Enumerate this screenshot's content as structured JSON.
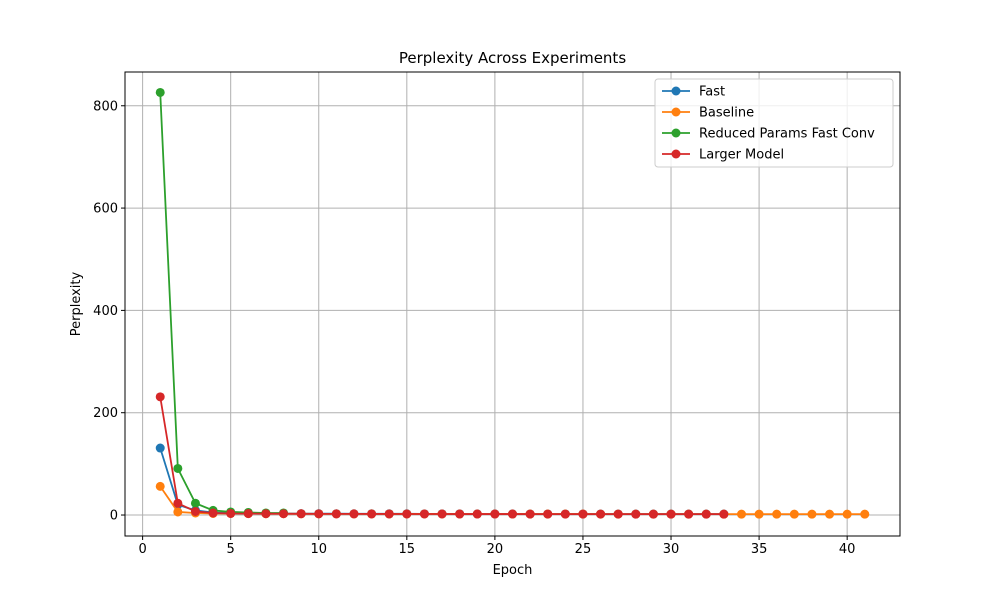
{
  "chart_data": {
    "type": "line",
    "title": "Perplexity Across Experiments",
    "xlabel": "Epoch",
    "ylabel": "Perplexity",
    "xlim": [
      -1.0,
      43.0
    ],
    "ylim": [
      -41,
      866
    ],
    "xticks": [
      0,
      5,
      10,
      15,
      20,
      25,
      30,
      35,
      40
    ],
    "yticks": [
      0,
      200,
      400,
      600,
      800
    ],
    "grid": true,
    "legend_position": "top-right",
    "series": [
      {
        "name": "Fast",
        "color": "#1f77b4",
        "marker": "circle",
        "x": [
          1,
          2,
          3,
          4,
          5,
          6,
          7,
          8,
          9,
          10,
          11,
          12,
          13,
          14,
          15,
          16,
          17,
          18,
          19,
          20,
          21,
          22,
          23,
          24,
          25,
          26,
          27,
          28,
          29,
          30,
          31,
          32,
          33
        ],
        "y": [
          131,
          20,
          9,
          5,
          4,
          3.5,
          3,
          3,
          2.8,
          2.7,
          2.6,
          2.5,
          2.5,
          2.4,
          2.4,
          2.3,
          2.3,
          2.3,
          2.2,
          2.2,
          2.2,
          2.1,
          2.1,
          2.1,
          2.1,
          2.0,
          2.0,
          2.0,
          2.0,
          2.0,
          2.0,
          1.9,
          1.9
        ]
      },
      {
        "name": "Baseline",
        "color": "#ff7f0e",
        "marker": "circle",
        "x": [
          1,
          2,
          3,
          4,
          5,
          6,
          7,
          8,
          9,
          10,
          11,
          12,
          13,
          14,
          15,
          16,
          17,
          18,
          19,
          20,
          21,
          22,
          23,
          24,
          25,
          26,
          27,
          28,
          29,
          30,
          31,
          32,
          33,
          34,
          35,
          36,
          37,
          38,
          39,
          40,
          41
        ],
        "y": [
          56,
          6,
          4,
          3,
          3,
          2.8,
          2.6,
          2.5,
          2.4,
          2.3,
          2.3,
          2.2,
          2.2,
          2.1,
          2.1,
          2.1,
          2.0,
          2.0,
          2.0,
          2.0,
          1.9,
          1.9,
          1.9,
          1.9,
          1.9,
          1.8,
          1.8,
          1.8,
          1.8,
          1.8,
          1.8,
          1.8,
          1.7,
          1.7,
          1.7,
          1.7,
          1.7,
          1.7,
          1.7,
          1.7,
          1.7
        ]
      },
      {
        "name": "Reduced Params Fast Conv",
        "color": "#2ca02c",
        "marker": "circle",
        "x": [
          1,
          2,
          3,
          4,
          5,
          6,
          7,
          8
        ],
        "y": [
          826,
          91,
          23,
          9,
          6,
          5,
          4,
          4
        ]
      },
      {
        "name": "Larger Model",
        "color": "#d62728",
        "marker": "circle",
        "x": [
          1,
          2,
          3,
          4,
          5,
          6,
          7,
          8,
          9,
          10,
          11,
          12,
          13,
          14,
          15,
          16,
          17,
          18,
          19,
          20,
          21,
          22,
          23,
          24,
          25,
          26,
          27,
          28,
          29,
          30,
          31,
          32,
          33
        ],
        "y": [
          231,
          23,
          7,
          4,
          3,
          2.8,
          2.6,
          2.5,
          2.4,
          2.3,
          2.2,
          2.2,
          2.1,
          2.1,
          2.0,
          2.0,
          2.0,
          1.9,
          1.9,
          1.9,
          1.9,
          1.8,
          1.8,
          1.8,
          1.8,
          1.8,
          1.8,
          1.7,
          1.7,
          1.7,
          1.7,
          1.7,
          1.7
        ]
      }
    ]
  }
}
